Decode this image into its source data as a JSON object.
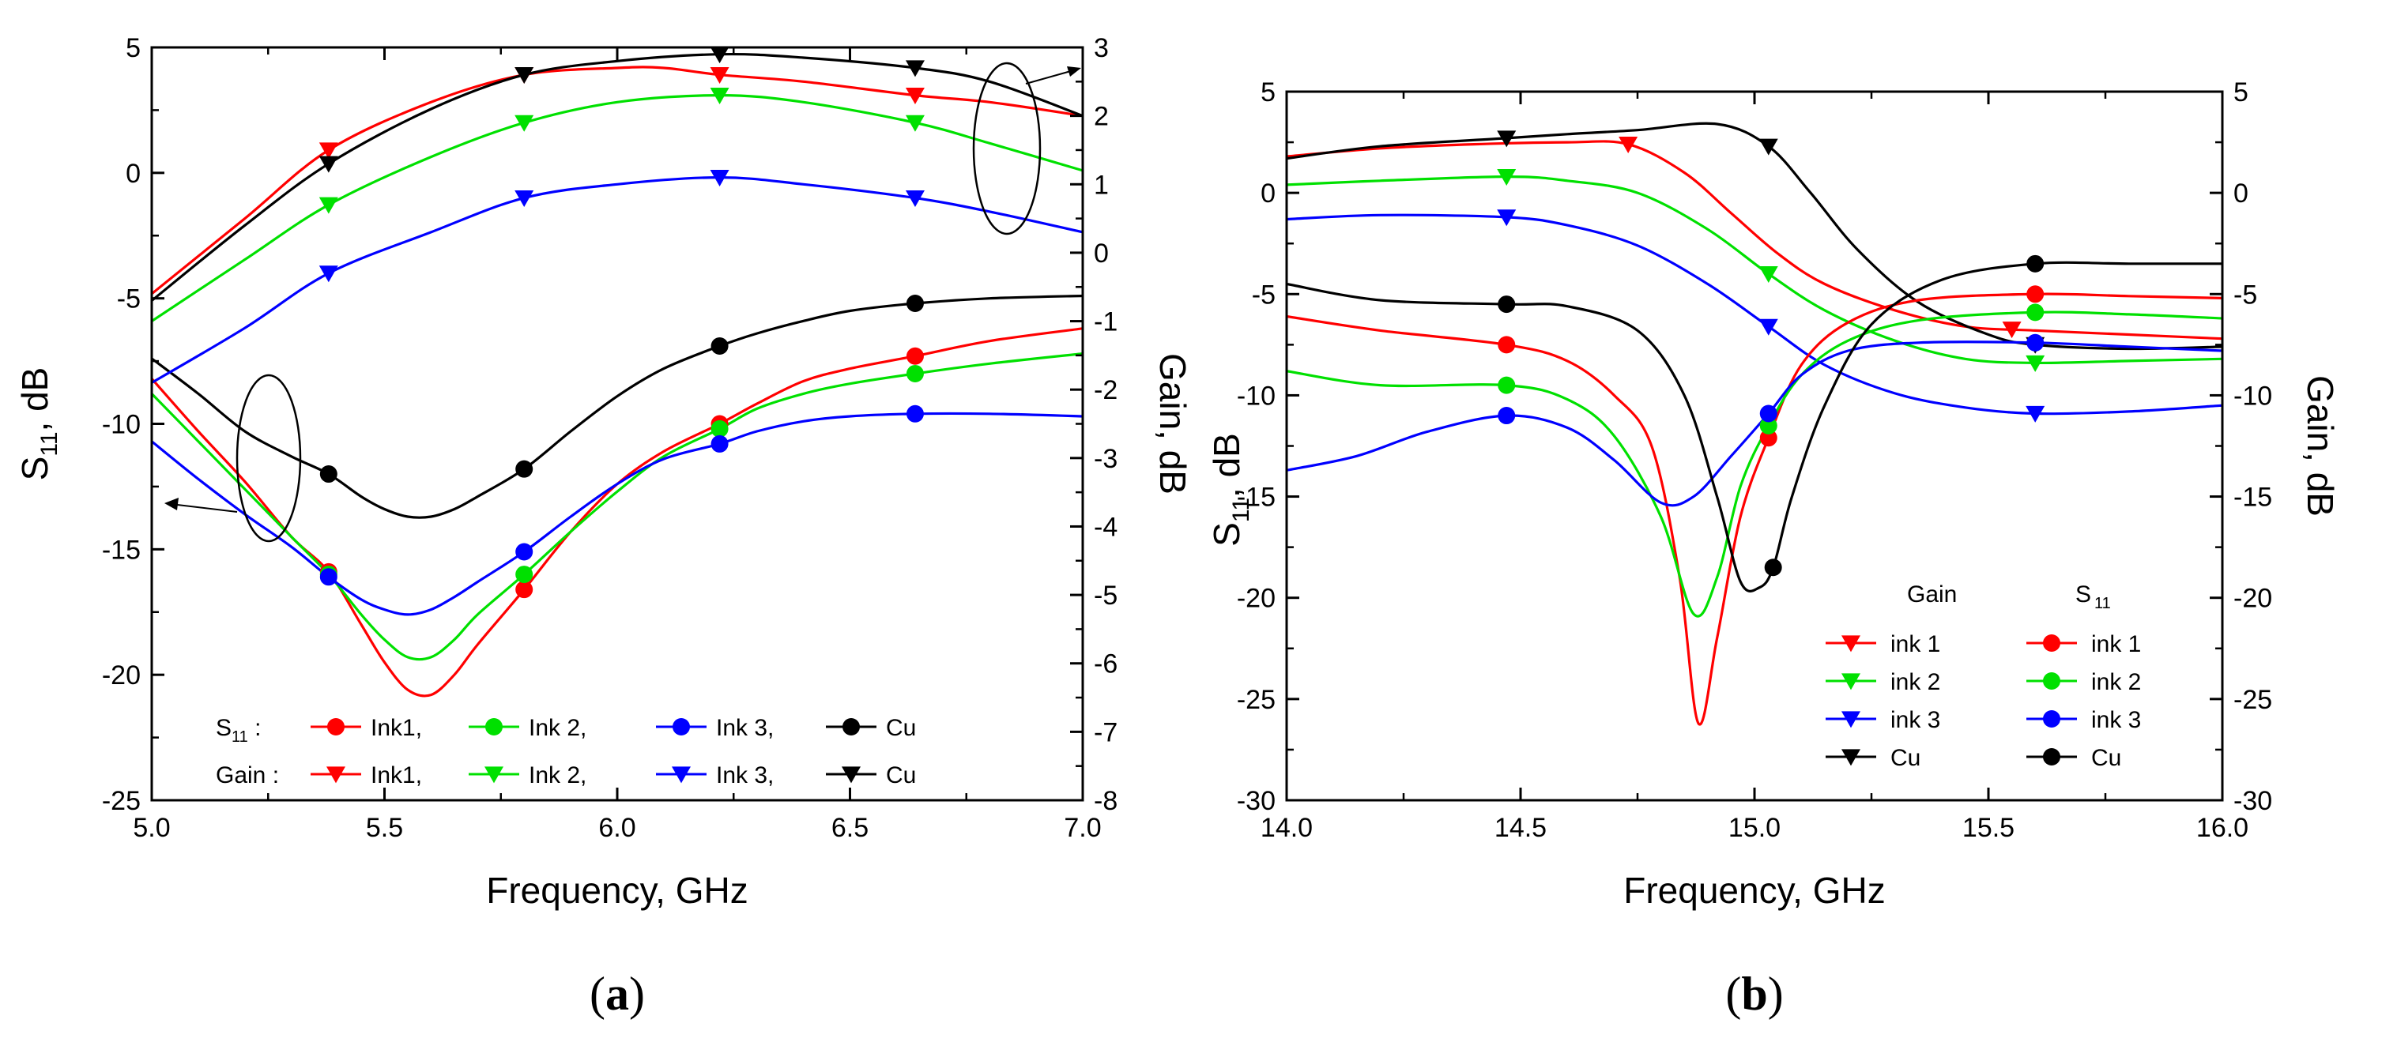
{
  "colors": {
    "ink1": "#ff0000",
    "ink2": "#00e000",
    "ink3": "#0000ff",
    "cu": "#000000"
  },
  "chart_data": [
    {
      "id": "a",
      "type": "line",
      "caption_letter": "a",
      "xlabel": "Frequency, GHz",
      "ylabel_left": "S11, dB",
      "ylabel_left_main": "S",
      "ylabel_left_sub": "11",
      "ylabel_left_unit": ", dB",
      "ylabel_right": "Gain, dB",
      "xlim": [
        5.0,
        7.0
      ],
      "ylim_left": [
        -25,
        5
      ],
      "ylim_right": [
        -8,
        3
      ],
      "xticks": [
        "5.0",
        "5.5",
        "6.0",
        "6.5",
        "7.0"
      ],
      "yticks_left": [
        "-25",
        "-20",
        "-15",
        "-10",
        "-5",
        "0",
        "5"
      ],
      "yticks_right": [
        "-8",
        "-7",
        "-6",
        "-5",
        "-4",
        "-3",
        "-2",
        "-1",
        "0",
        "1",
        "2",
        "3"
      ],
      "legend": {
        "s11_prefix": "S11 :",
        "gain_prefix": "Gain :",
        "s11_labels": [
          "Ink1,",
          "Ink 2,",
          "Ink 3,",
          "Cu"
        ],
        "gain_labels": [
          "Ink1,",
          "Ink 2,",
          "Ink 3,",
          "Cu"
        ]
      },
      "marker_x": [
        5.38,
        5.8,
        6.22,
        6.64
      ],
      "series": [
        {
          "name": "S11 Ink1",
          "axis": "left",
          "color_key": "ink1",
          "marker": "circle",
          "x": [
            5.0,
            5.1,
            5.2,
            5.3,
            5.38,
            5.45,
            5.5,
            5.55,
            5.6,
            5.65,
            5.7,
            5.8,
            5.9,
            6.0,
            6.1,
            6.22,
            6.3,
            6.4,
            6.5,
            6.64,
            6.8,
            7.0
          ],
          "values": [
            -8.2,
            -10.3,
            -12.3,
            -14.5,
            -15.9,
            -18.0,
            -19.5,
            -20.6,
            -20.8,
            -20.0,
            -18.8,
            -16.6,
            -14.3,
            -12.4,
            -11.1,
            -10.0,
            -9.2,
            -8.3,
            -7.8,
            -7.3,
            -6.7,
            -6.2
          ]
        },
        {
          "name": "S11 Ink 2",
          "axis": "left",
          "color_key": "ink2",
          "marker": "circle",
          "x": [
            5.0,
            5.1,
            5.2,
            5.3,
            5.38,
            5.45,
            5.5,
            5.55,
            5.6,
            5.65,
            5.7,
            5.8,
            5.9,
            6.0,
            6.1,
            6.22,
            6.3,
            6.4,
            6.5,
            6.64,
            6.8,
            7.0
          ],
          "values": [
            -8.8,
            -10.7,
            -12.6,
            -14.5,
            -16.0,
            -17.6,
            -18.6,
            -19.3,
            -19.3,
            -18.6,
            -17.6,
            -16.0,
            -14.3,
            -12.7,
            -11.3,
            -10.2,
            -9.4,
            -8.8,
            -8.4,
            -8.0,
            -7.6,
            -7.2
          ]
        },
        {
          "name": "S11 Ink 3",
          "axis": "left",
          "color_key": "ink3",
          "marker": "circle",
          "x": [
            5.0,
            5.1,
            5.2,
            5.3,
            5.38,
            5.45,
            5.5,
            5.55,
            5.6,
            5.65,
            5.7,
            5.8,
            5.9,
            6.0,
            6.1,
            6.22,
            6.3,
            6.4,
            6.5,
            6.64,
            6.8,
            7.0
          ],
          "values": [
            -10.7,
            -12.2,
            -13.6,
            -14.9,
            -16.1,
            -17.0,
            -17.4,
            -17.6,
            -17.4,
            -16.9,
            -16.3,
            -15.1,
            -13.7,
            -12.4,
            -11.4,
            -10.8,
            -10.3,
            -9.9,
            -9.7,
            -9.6,
            -9.6,
            -9.7
          ]
        },
        {
          "name": "S11 Cu",
          "axis": "left",
          "color_key": "cu",
          "marker": "circle",
          "x": [
            5.0,
            5.1,
            5.2,
            5.3,
            5.38,
            5.45,
            5.5,
            5.55,
            5.6,
            5.65,
            5.7,
            5.8,
            5.9,
            6.0,
            6.1,
            6.22,
            6.3,
            6.4,
            6.5,
            6.64,
            6.8,
            7.0
          ],
          "values": [
            -7.4,
            -8.8,
            -10.3,
            -11.3,
            -12.0,
            -12.9,
            -13.4,
            -13.7,
            -13.7,
            -13.4,
            -12.9,
            -11.8,
            -10.3,
            -8.9,
            -7.8,
            -6.9,
            -6.4,
            -5.9,
            -5.5,
            -5.2,
            -5.0,
            -4.9
          ]
        },
        {
          "name": "Gain Ink1",
          "axis": "right",
          "color_key": "ink1",
          "marker": "triangle-down",
          "x": [
            5.0,
            5.2,
            5.38,
            5.6,
            5.8,
            6.0,
            6.1,
            6.22,
            6.4,
            6.64,
            6.8,
            7.0
          ],
          "values": [
            -0.6,
            0.5,
            1.5,
            2.2,
            2.6,
            2.7,
            2.7,
            2.6,
            2.5,
            2.3,
            2.2,
            2.0
          ]
        },
        {
          "name": "Gain Ink 2",
          "axis": "right",
          "color_key": "ink2",
          "marker": "triangle-down",
          "x": [
            5.0,
            5.2,
            5.38,
            5.6,
            5.8,
            6.0,
            6.22,
            6.4,
            6.64,
            6.8,
            7.0
          ],
          "values": [
            -1.0,
            -0.1,
            0.7,
            1.4,
            1.9,
            2.2,
            2.3,
            2.2,
            1.9,
            1.6,
            1.2
          ]
        },
        {
          "name": "Gain Ink 3",
          "axis": "right",
          "color_key": "ink3",
          "marker": "triangle-down",
          "x": [
            5.0,
            5.2,
            5.38,
            5.6,
            5.8,
            6.0,
            6.22,
            6.4,
            6.64,
            6.8,
            7.0
          ],
          "values": [
            -1.9,
            -1.1,
            -0.3,
            0.3,
            0.8,
            1.0,
            1.1,
            1.0,
            0.8,
            0.6,
            0.3
          ]
        },
        {
          "name": "Gain Cu",
          "axis": "right",
          "color_key": "cu",
          "marker": "triangle-down",
          "x": [
            5.0,
            5.2,
            5.38,
            5.6,
            5.8,
            6.0,
            6.22,
            6.4,
            6.64,
            6.8,
            7.0
          ],
          "values": [
            -0.7,
            0.4,
            1.3,
            2.1,
            2.6,
            2.8,
            2.9,
            2.85,
            2.7,
            2.5,
            2.0
          ]
        }
      ]
    },
    {
      "id": "b",
      "type": "line",
      "caption_letter": "b",
      "xlabel": "Frequency, GHz",
      "ylabel_left": "S11, dB",
      "ylabel_left_main": "S",
      "ylabel_left_sub": "11",
      "ylabel_left_unit": ", dB",
      "ylabel_right": "Gain, dB",
      "xlim": [
        14.0,
        16.0
      ],
      "ylim_left": [
        -30,
        5
      ],
      "ylim_right": [
        -30,
        5
      ],
      "xticks": [
        "14.0",
        "14.5",
        "15.0",
        "15.5",
        "16.0"
      ],
      "yticks_left": [
        "-30",
        "-25",
        "-20",
        "-15",
        "-10",
        "-5",
        "0",
        "5"
      ],
      "yticks_right": [
        "-30",
        "-25",
        "-20",
        "-15",
        "-10",
        "-5",
        "0",
        "5"
      ],
      "legend": {
        "gain_title": "Gain",
        "s11_title_main": "S",
        "s11_title_sub": "11",
        "gain_labels": [
          "ink 1",
          "ink 2",
          "ink 3",
          "Cu"
        ],
        "s11_labels": [
          "ink 1",
          "ink 2",
          "ink 3",
          "Cu"
        ]
      },
      "series": [
        {
          "name": "Gain ink 1",
          "axis": "right",
          "color_key": "ink1",
          "marker": "triangle-down",
          "x": [
            14.0,
            14.2,
            14.4,
            14.6,
            14.73,
            14.85,
            14.95,
            15.05,
            15.15,
            15.3,
            15.45,
            15.6,
            15.8,
            16.0
          ],
          "values": [
            1.8,
            2.2,
            2.4,
            2.5,
            2.4,
            1.0,
            -1.0,
            -3.0,
            -4.5,
            -5.8,
            -6.6,
            -6.8,
            -7.0,
            -7.2
          ],
          "marker_x": [
            14.73,
            15.55
          ]
        },
        {
          "name": "Gain ink 2",
          "axis": "right",
          "color_key": "ink2",
          "marker": "triangle-down",
          "x": [
            14.0,
            14.2,
            14.47,
            14.6,
            14.75,
            14.9,
            15.03,
            15.15,
            15.3,
            15.45,
            15.6,
            15.8,
            16.0
          ],
          "values": [
            0.4,
            0.6,
            0.8,
            0.6,
            0.0,
            -1.8,
            -4.0,
            -5.8,
            -7.3,
            -8.2,
            -8.4,
            -8.3,
            -8.2
          ],
          "marker_x": [
            14.47,
            15.03,
            15.6
          ]
        },
        {
          "name": "Gain ink 3",
          "axis": "right",
          "color_key": "ink3",
          "marker": "triangle-down",
          "x": [
            14.0,
            14.2,
            14.47,
            14.6,
            14.75,
            14.9,
            15.03,
            15.15,
            15.3,
            15.45,
            15.6,
            15.8,
            16.0
          ],
          "values": [
            -1.3,
            -1.1,
            -1.2,
            -1.6,
            -2.6,
            -4.5,
            -6.6,
            -8.5,
            -9.9,
            -10.6,
            -10.9,
            -10.8,
            -10.5
          ],
          "marker_x": [
            14.47,
            15.03,
            15.6
          ]
        },
        {
          "name": "Gain Cu",
          "axis": "right",
          "color_key": "cu",
          "marker": "triangle-down",
          "x": [
            14.0,
            14.2,
            14.47,
            14.6,
            14.75,
            14.92,
            15.03,
            15.12,
            15.22,
            15.35,
            15.5,
            15.6,
            15.8,
            16.0
          ],
          "values": [
            1.7,
            2.3,
            2.7,
            2.9,
            3.1,
            3.4,
            2.3,
            0.0,
            -2.8,
            -5.4,
            -7.0,
            -7.5,
            -7.7,
            -7.6
          ],
          "marker_x": [
            14.47,
            15.03,
            15.6
          ]
        },
        {
          "name": "S11 ink 1",
          "axis": "left",
          "color_key": "ink1",
          "marker": "circle",
          "x": [
            14.0,
            14.2,
            14.47,
            14.6,
            14.7,
            14.78,
            14.84,
            14.88,
            14.92,
            14.97,
            15.03,
            15.1,
            15.2,
            15.35,
            15.6,
            15.8,
            16.0
          ],
          "values": [
            -6.1,
            -6.8,
            -7.5,
            -8.3,
            -10.0,
            -12.5,
            -19.0,
            -26.2,
            -22.0,
            -16.0,
            -12.1,
            -8.5,
            -6.4,
            -5.3,
            -5.0,
            -5.1,
            -5.2
          ],
          "marker_x": [
            14.47,
            15.03,
            15.6
          ]
        },
        {
          "name": "S11 ink 2",
          "axis": "left",
          "color_key": "ink2",
          "marker": "circle",
          "x": [
            14.0,
            14.2,
            14.47,
            14.6,
            14.7,
            14.8,
            14.87,
            14.92,
            14.97,
            15.03,
            15.1,
            15.2,
            15.35,
            15.6,
            15.8,
            16.0
          ],
          "values": [
            -8.8,
            -9.5,
            -9.5,
            -10.2,
            -12.0,
            -16.0,
            -20.8,
            -19.0,
            -14.5,
            -11.5,
            -9.0,
            -7.3,
            -6.3,
            -5.9,
            -6.0,
            -6.2
          ],
          "marker_x": [
            14.47,
            15.03,
            15.6
          ]
        },
        {
          "name": "S11 ink 3",
          "axis": "left",
          "color_key": "ink3",
          "marker": "circle",
          "x": [
            14.0,
            14.15,
            14.3,
            14.47,
            14.6,
            14.7,
            14.8,
            14.87,
            14.95,
            15.03,
            15.1,
            15.2,
            15.35,
            15.6,
            15.8,
            16.0
          ],
          "values": [
            -13.7,
            -13.0,
            -11.8,
            -11.0,
            -11.6,
            -13.2,
            -15.3,
            -15.0,
            -13.0,
            -10.9,
            -9.0,
            -7.8,
            -7.4,
            -7.4,
            -7.6,
            -7.8
          ],
          "marker_x": [
            14.47,
            15.03,
            15.6
          ]
        },
        {
          "name": "S11 Cu",
          "axis": "left",
          "color_key": "cu",
          "marker": "circle",
          "x": [
            14.0,
            14.2,
            14.47,
            14.6,
            14.75,
            14.85,
            14.92,
            14.97,
            15.01,
            15.04,
            15.08,
            15.15,
            15.25,
            15.4,
            15.6,
            15.8,
            16.0
          ],
          "values": [
            -4.5,
            -5.3,
            -5.5,
            -5.6,
            -6.8,
            -10.0,
            -15.0,
            -19.2,
            -19.5,
            -18.5,
            -15.0,
            -10.5,
            -6.5,
            -4.3,
            -3.5,
            -3.5,
            -3.5
          ],
          "marker_x": [
            14.47,
            15.04,
            15.6
          ]
        }
      ]
    }
  ]
}
